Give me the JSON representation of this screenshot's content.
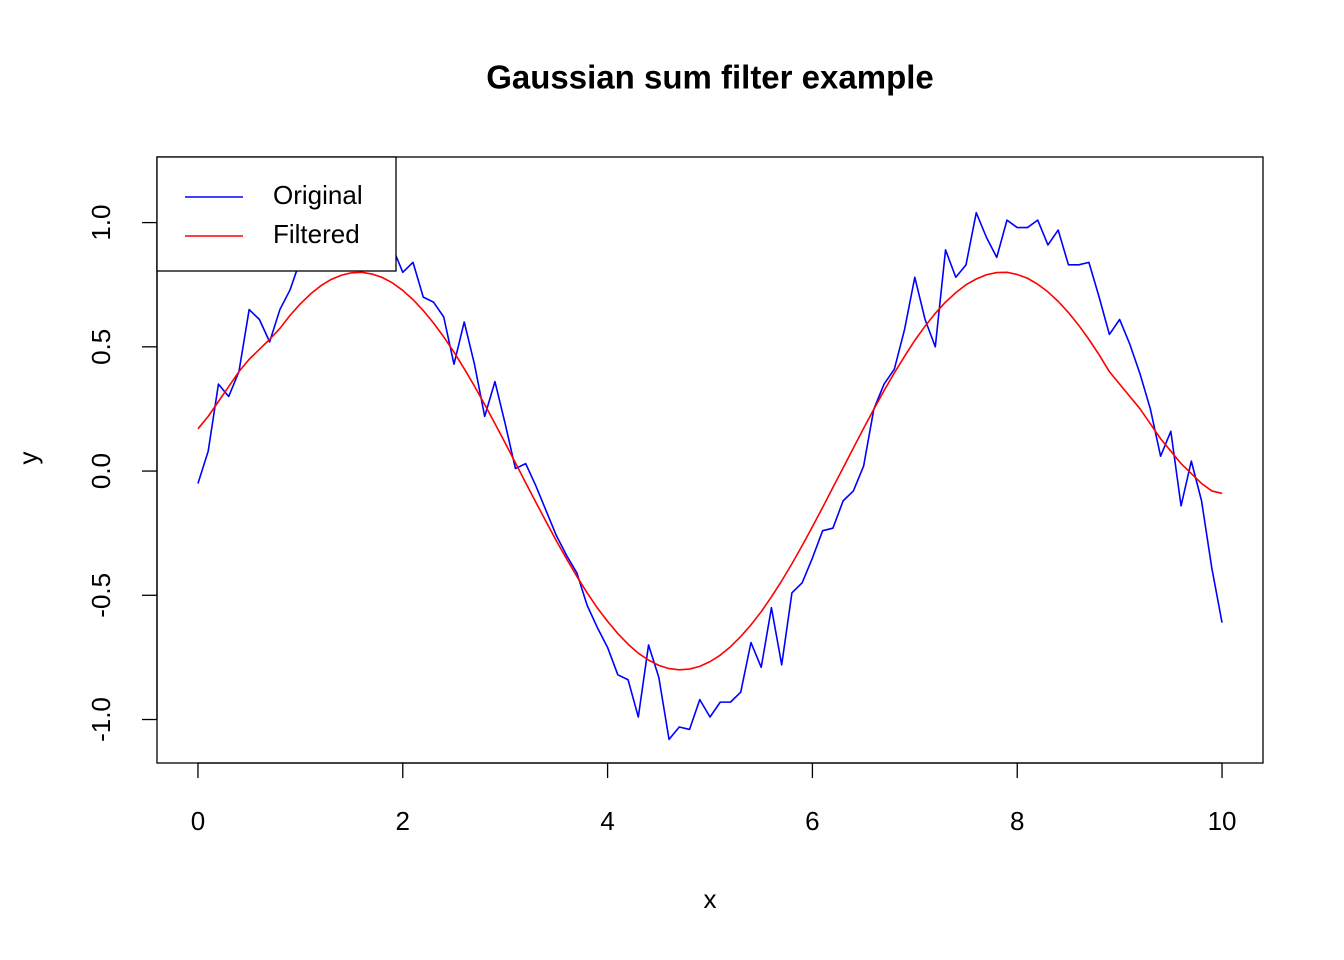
{
  "chart_data": {
    "type": "line",
    "title": "Gaussian sum filter example",
    "x_label": "x",
    "y_label": "y",
    "x": [
      0,
      0.1,
      0.2,
      0.3,
      0.4,
      0.5,
      0.6,
      0.7,
      0.8,
      0.9,
      1,
      1.1,
      1.2,
      1.3,
      1.4,
      1.5,
      1.6,
      1.7,
      1.8,
      1.9,
      2,
      2.1,
      2.2,
      2.3,
      2.4,
      2.5,
      2.6,
      2.7,
      2.8,
      2.9,
      3,
      3.1,
      3.2,
      3.3,
      3.4,
      3.5,
      3.6,
      3.7,
      3.8,
      3.9,
      4,
      4.1,
      4.2,
      4.3,
      4.4,
      4.5,
      4.6,
      4.7,
      4.8,
      4.9,
      5,
      5.1,
      5.2,
      5.3,
      5.4,
      5.5,
      5.6,
      5.7,
      5.8,
      5.9,
      6,
      6.1,
      6.2,
      6.3,
      6.4,
      6.5,
      6.6,
      6.7,
      6.8,
      6.9,
      7,
      7.1,
      7.2,
      7.3,
      7.4,
      7.5,
      7.6,
      7.7,
      7.8,
      7.9,
      8,
      8.1,
      8.2,
      8.3,
      8.4,
      8.5,
      8.6,
      8.7,
      8.8,
      8.9,
      9,
      9.1,
      9.2,
      9.3,
      9.4,
      9.5,
      9.6,
      9.7,
      9.8,
      9.9,
      10
    ],
    "series": [
      {
        "name": "Original",
        "color": "#0000ff",
        "values": [
          -0.05,
          0.08,
          0.35,
          0.3,
          0.4,
          0.65,
          0.61,
          0.52,
          0.65,
          0.73,
          0.85,
          0.95,
          0.92,
          0.98,
          0.9,
          1.0,
          0.92,
          0.85,
          0.88,
          0.9,
          0.8,
          0.84,
          0.7,
          0.68,
          0.62,
          0.43,
          0.6,
          0.43,
          0.22,
          0.36,
          0.19,
          0.01,
          0.03,
          -0.06,
          -0.16,
          -0.26,
          -0.34,
          -0.41,
          -0.54,
          -0.63,
          -0.71,
          -0.82,
          -0.84,
          -0.99,
          -0.7,
          -0.83,
          -1.08,
          -1.03,
          -1.04,
          -0.92,
          -0.99,
          -0.93,
          -0.93,
          -0.89,
          -0.69,
          -0.79,
          -0.55,
          -0.78,
          -0.49,
          -0.45,
          -0.35,
          -0.24,
          -0.23,
          -0.12,
          -0.08,
          0.02,
          0.25,
          0.35,
          0.41,
          0.57,
          0.78,
          0.61,
          0.5,
          0.89,
          0.78,
          0.83,
          1.04,
          0.94,
          0.86,
          1.01,
          0.98,
          0.98,
          1.01,
          0.91,
          0.97,
          0.83,
          0.83,
          0.84,
          0.7,
          0.55,
          0.61,
          0.51,
          0.39,
          0.25,
          0.06,
          0.16,
          -0.14,
          0.04,
          -0.12,
          -0.39,
          -0.61
        ]
      },
      {
        "name": "Filtered",
        "color": "#ff0000",
        "values": [
          0.17,
          0.22,
          0.28,
          0.34,
          0.4,
          0.45,
          0.49,
          0.53,
          0.574,
          0.627,
          0.673,
          0.713,
          0.746,
          0.771,
          0.788,
          0.798,
          0.8,
          0.793,
          0.779,
          0.757,
          0.727,
          0.69,
          0.646,
          0.596,
          0.54,
          0.479,
          0.412,
          0.342,
          0.268,
          0.191,
          0.113,
          0.033,
          -0.047,
          -0.126,
          -0.204,
          -0.281,
          -0.354,
          -0.424,
          -0.49,
          -0.551,
          -0.605,
          -0.654,
          -0.697,
          -0.733,
          -0.761,
          -0.782,
          -0.795,
          -0.8,
          -0.797,
          -0.786,
          -0.767,
          -0.741,
          -0.707,
          -0.666,
          -0.619,
          -0.566,
          -0.506,
          -0.442,
          -0.373,
          -0.3,
          -0.224,
          -0.146,
          -0.066,
          0.013,
          0.093,
          0.172,
          0.249,
          0.324,
          0.395,
          0.462,
          0.526,
          0.583,
          0.635,
          0.68,
          0.718,
          0.75,
          0.773,
          0.79,
          0.799,
          0.8,
          0.791,
          0.776,
          0.752,
          0.721,
          0.683,
          0.638,
          0.587,
          0.53,
          0.468,
          0.4,
          0.35,
          0.3,
          0.25,
          0.19,
          0.13,
          0.08,
          0.03,
          -0.01,
          -0.05,
          -0.08,
          -0.09
        ]
      }
    ],
    "xlim": [
      -0.4,
      10.4
    ],
    "ylim": [
      -1.175,
      1.264
    ],
    "xticks": [
      0,
      2,
      4,
      6,
      8,
      10
    ],
    "yticks": [
      {
        "value": -1,
        "label": "-1.0"
      },
      {
        "value": -0.5,
        "label": "-0.5"
      },
      {
        "value": 0,
        "label": "0.0"
      },
      {
        "value": 0.5,
        "label": "0.5"
      },
      {
        "value": 1,
        "label": "1.0"
      }
    ],
    "legend": "topleft"
  }
}
